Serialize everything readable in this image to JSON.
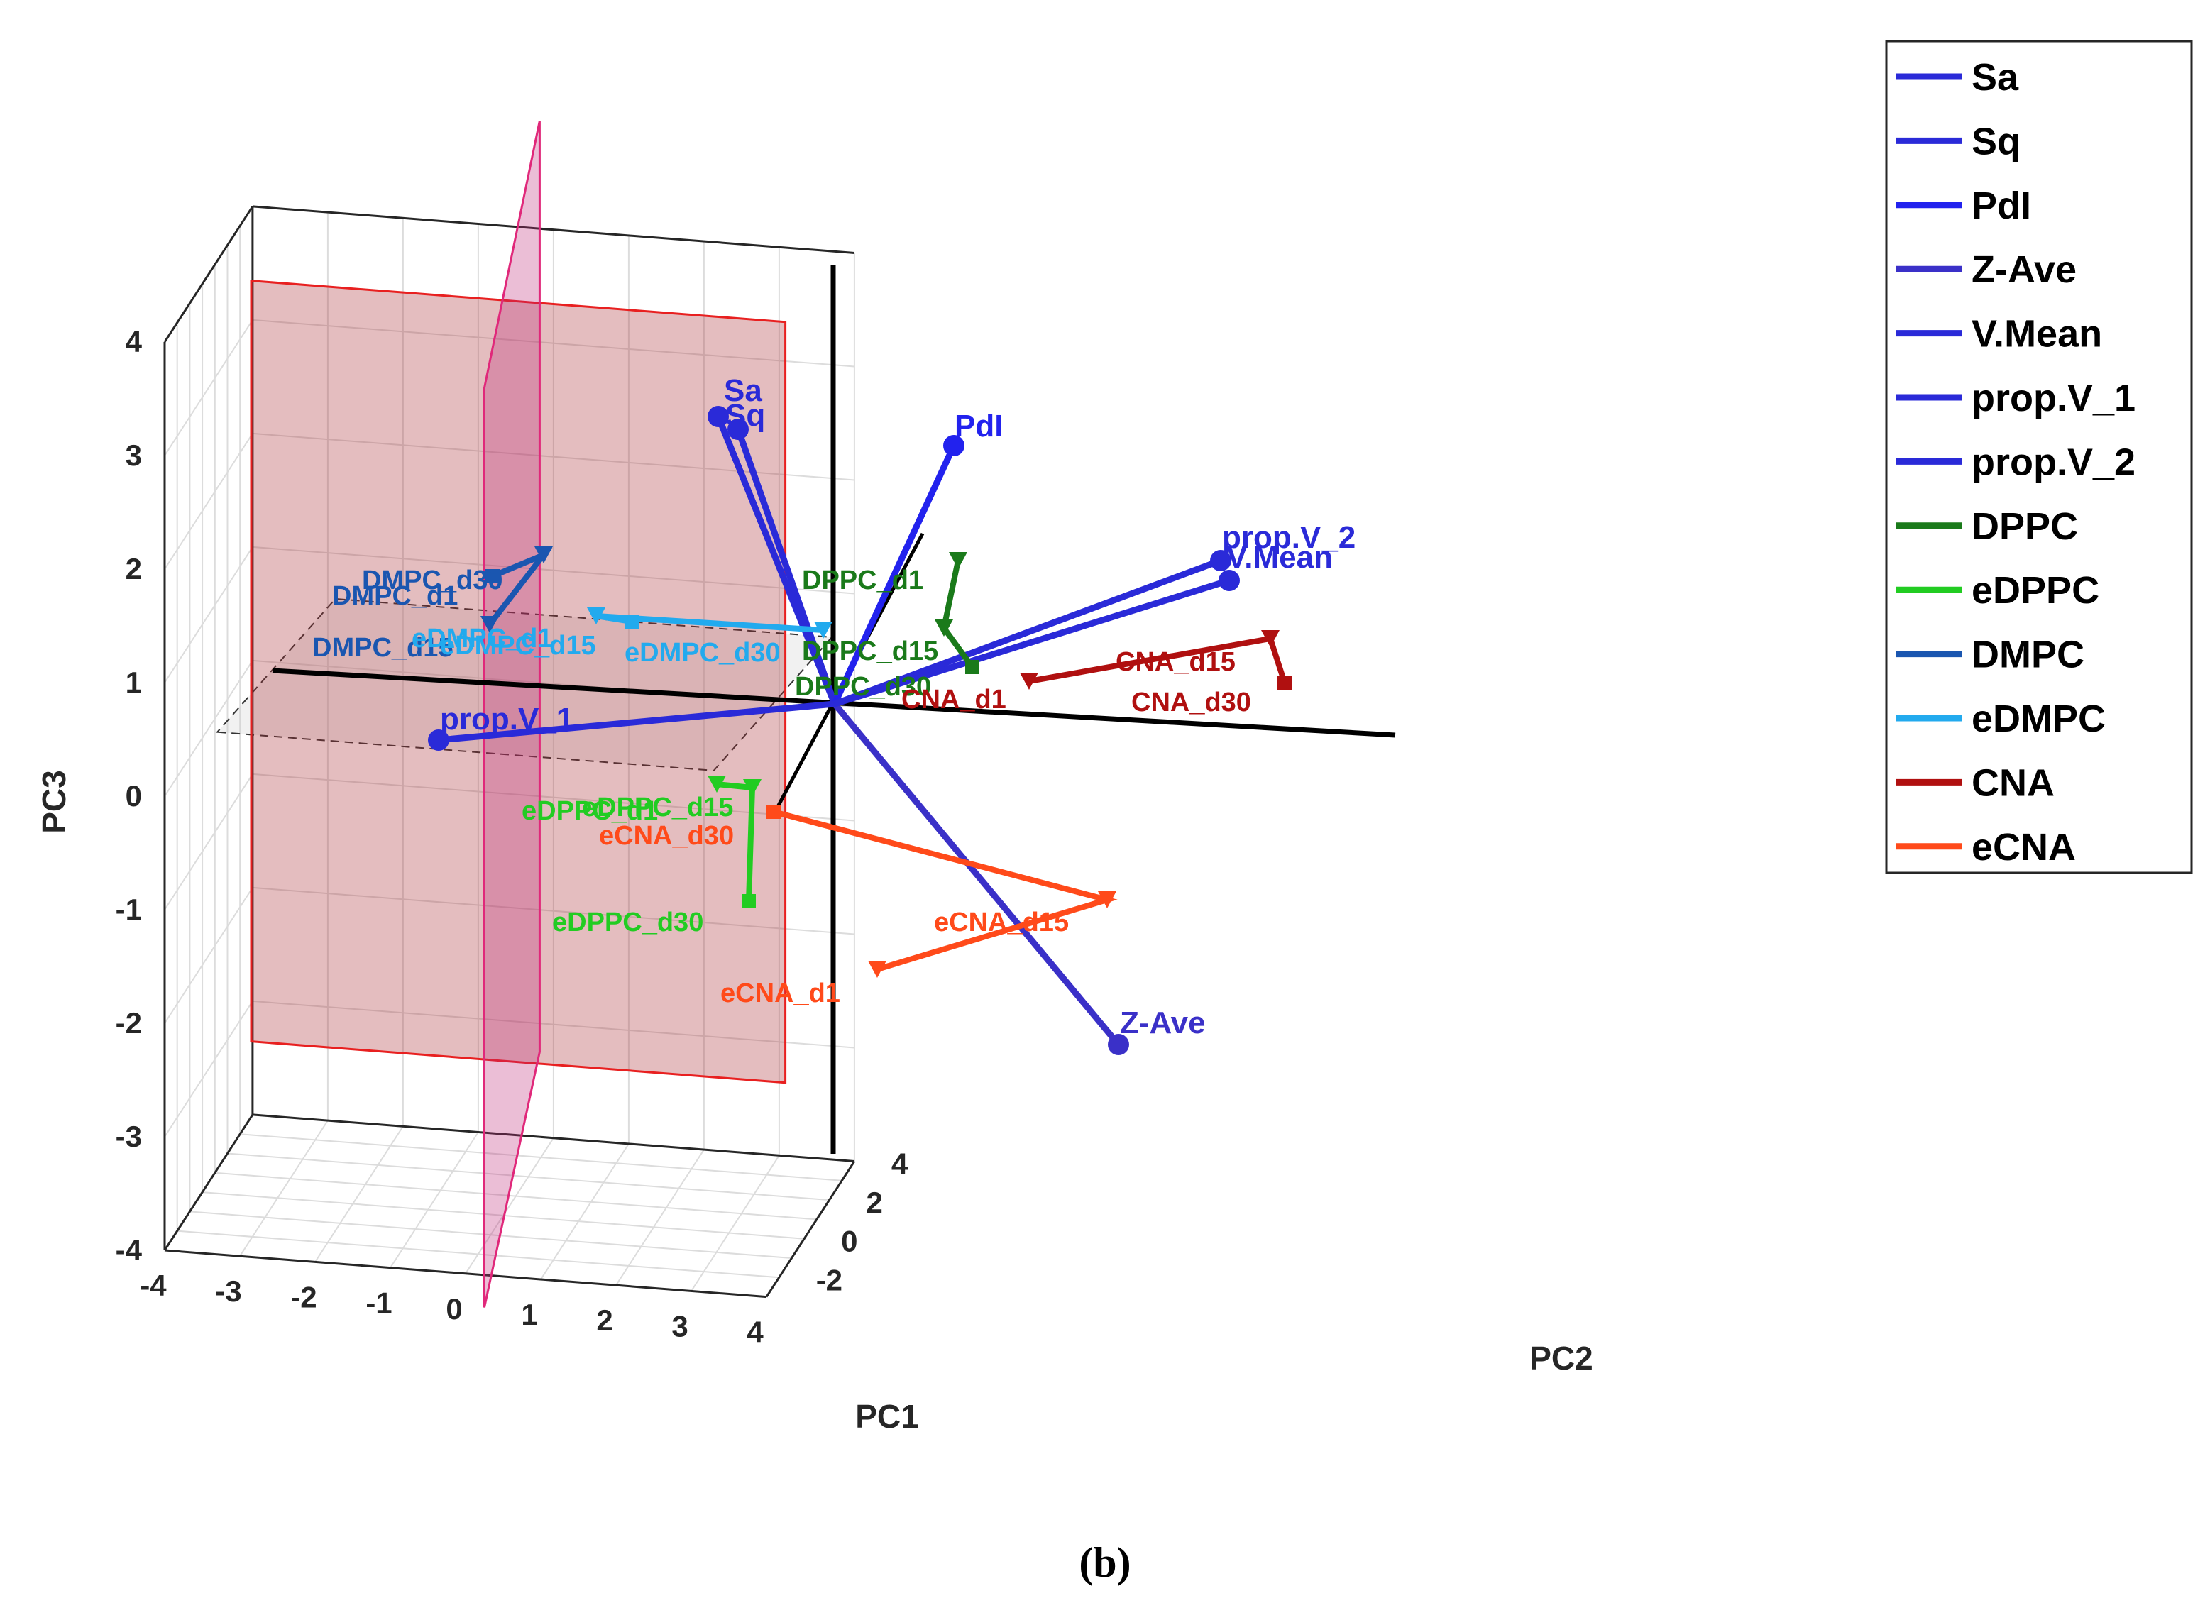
{
  "caption": "(b)",
  "chart_data": {
    "type": "scatter",
    "subtype": "3d-biplot",
    "xlabel": "PC1",
    "ylabel": "PC2",
    "zlabel": "PC3",
    "xlim": [
      -4,
      4
    ],
    "ylim": [
      -3,
      4
    ],
    "zlim": [
      -4,
      4
    ],
    "xticks": [
      "-4",
      "-3",
      "-2",
      "-1",
      "0",
      "1",
      "2",
      "3",
      "4"
    ],
    "yticks": [
      "-2",
      "0",
      "2",
      "4"
    ],
    "zticks": [
      "-4",
      "-3",
      "-2",
      "-1",
      "0",
      "1",
      "2",
      "3",
      "4"
    ],
    "grid": true,
    "legend_position": "top-right",
    "variables": [
      {
        "name": "Sa",
        "label": "Sa",
        "color": "#2a2ad8",
        "pc1": -0.8,
        "pc3": 3.4
      },
      {
        "name": "Sq",
        "label": "Sq",
        "color": "#2a2ad8",
        "pc1": -0.6,
        "pc3": 3.2
      },
      {
        "name": "PdI",
        "label": "PdI",
        "color": "#2222ee",
        "pc1": 0.9,
        "pc3": 3.1
      },
      {
        "name": "Z-Ave",
        "label": "Z-Ave",
        "color": "#3a30c8",
        "pc1": 2.3,
        "pc3": -2.2
      },
      {
        "name": "V.Mean",
        "label": "V.Mean",
        "color": "#2a2ad8",
        "pc1": 3.2,
        "pc3": 1.9
      },
      {
        "name": "prop.V_1",
        "label": "prop.V_1",
        "color": "#2a2ad8",
        "pc1": -2.9,
        "pc3": 0.5
      },
      {
        "name": "prop.V_2",
        "label": "prop.V_2",
        "color": "#2a2ad8",
        "pc1": 3.2,
        "pc3": 2.1
      }
    ],
    "series": [
      {
        "name": "DPPC",
        "color": "#1a7a1a",
        "points": [
          {
            "label": "DPPC_d1",
            "pc1": 1.0,
            "pc3": 2.1
          },
          {
            "label": "DPPC_d15",
            "pc1": 0.9,
            "pc3": 1.5
          },
          {
            "label": "DPPC_d30",
            "pc1": 1.1,
            "pc3": 1.2
          }
        ]
      },
      {
        "name": "eDPPC",
        "color": "#22cc22",
        "points": [
          {
            "label": "eDPPC_d1",
            "pc1": -0.7,
            "pc3": 0.1
          },
          {
            "label": "eDPPC_d15",
            "pc1": -0.5,
            "pc3": 0.1
          },
          {
            "label": "eDPPC_d30",
            "pc1": -0.4,
            "pc3": -0.9
          }
        ]
      },
      {
        "name": "DMPC",
        "color": "#1a56b0",
        "points": [
          {
            "label": "DMPC_d1",
            "pc1": -2.5,
            "pc3": 1.5
          },
          {
            "label": "DMPC_d15",
            "pc1": -2.0,
            "pc3": 2.1
          },
          {
            "label": "DMPC_d30",
            "pc1": -2.4,
            "pc3": 1.9
          }
        ]
      },
      {
        "name": "eDMPC",
        "color": "#22aaee",
        "points": [
          {
            "label": "eDMPC_d1",
            "pc1": 0.0,
            "pc3": 1.4
          },
          {
            "label": "eDMPC_d15",
            "pc1": -1.5,
            "pc3": 1.5
          },
          {
            "label": "eDMPC_d30",
            "pc1": -1.3,
            "pc3": 1.6
          }
        ]
      },
      {
        "name": "CNA",
        "color": "#b01010",
        "points": [
          {
            "label": "CNA_d1",
            "pc1": 1.6,
            "pc3": 1.0
          },
          {
            "label": "CNA_d15",
            "pc1": 3.3,
            "pc3": 1.4
          },
          {
            "label": "CNA_d30",
            "pc1": 3.4,
            "pc3": 1.0
          }
        ]
      },
      {
        "name": "eCNA",
        "color": "#ff4a1a",
        "points": [
          {
            "label": "eCNA_d1",
            "pc1": 0.4,
            "pc3": -1.5
          },
          {
            "label": "eCNA_d15",
            "pc1": 2.0,
            "pc3": -0.9
          },
          {
            "label": "eCNA_d30",
            "pc1": -0.5,
            "pc3": -0.1
          }
        ]
      }
    ],
    "legend": [
      "Sa",
      "Sq",
      "PdI",
      "Z-Ave",
      "V.Mean",
      "prop.V_1",
      "prop.V_2",
      "DPPC",
      "eDPPC",
      "DMPC",
      "eDMPC",
      "CNA",
      "eCNA"
    ],
    "text_labels": {
      "Sa": "Sa",
      "Sq": "Sq",
      "PdI": "PdI",
      "Z-Ave": "Z-Ave",
      "V.Mean": "V.Mean",
      "prop.V_1": "prop.V_1",
      "prop.V_2": "prop.V_2",
      "DPPC_d1": "DPPC_d1",
      "DPPC_d15": "DPPC_d15",
      "DPPC_d30": "DPPC_d30",
      "eDPPC_d1": "eDPPC_d1",
      "eDPPC_d15": "eDPPC_d15",
      "eDPPC_d30": "eDPPC_d30",
      "DMPC_d1": "DMPC_d1",
      "DMPC_d15": "DMPC_d15",
      "DMPC_d30": "DMPC_d30",
      "eDMPC_d1": "eDMPC_d1",
      "eDMPC_d15": "eDMPC_d15",
      "eDMPC_d30": "eDMPC_d30",
      "CNA_d1": "CNA_d1",
      "CNA_d15": "CNA_d15",
      "CNA_d30": "CNA_d30",
      "eCNA_d1": "eCNA_d1",
      "eCNA_d15": "eCNA_d15",
      "eCNA_d30": "eCNA_d30"
    }
  }
}
